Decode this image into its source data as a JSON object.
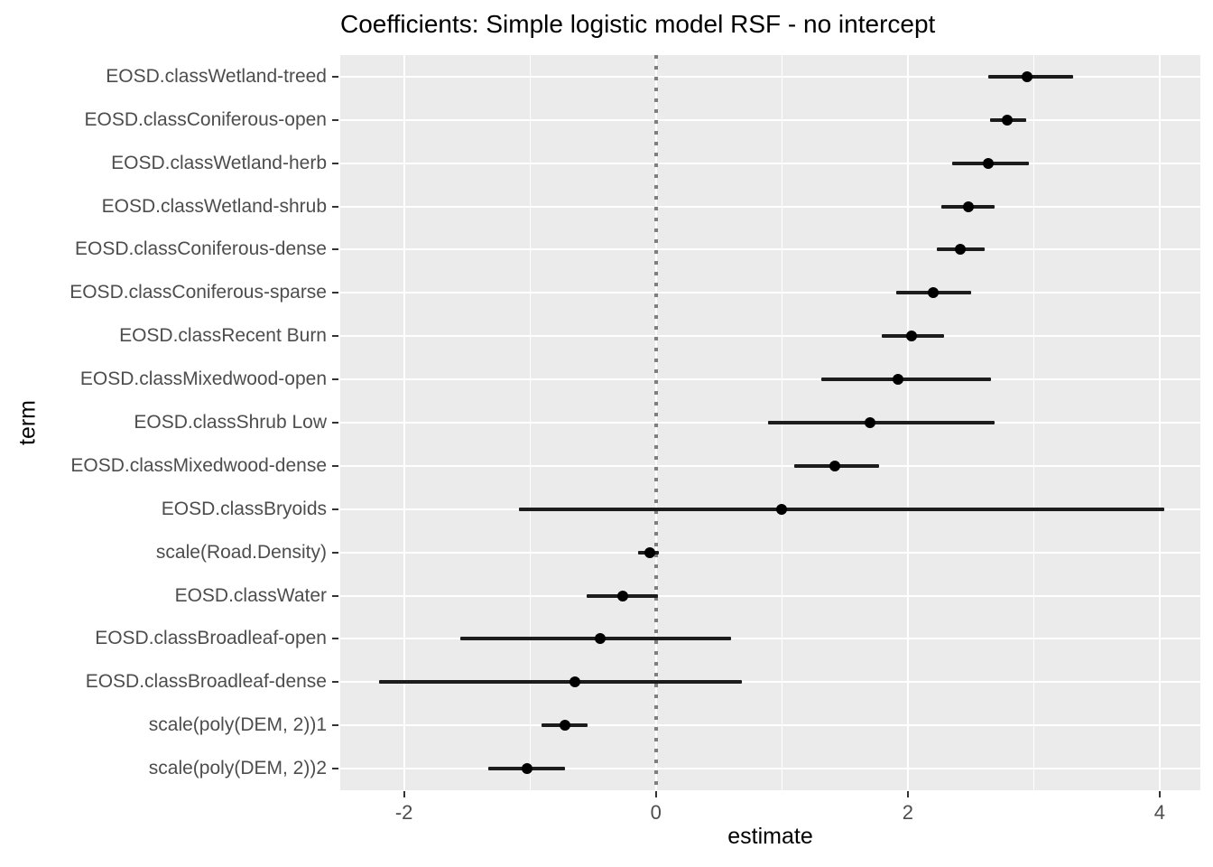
{
  "title": "Coefficients: Simple logistic model RSF - no intercept",
  "x_axis": {
    "title": "estimate",
    "tick_labels": [
      "-2",
      "0",
      "2",
      "4"
    ]
  },
  "y_axis": {
    "title": "term"
  },
  "colors": {
    "panel_background": "#EBEBEB",
    "gridline": "#FFFFFF",
    "axis_text": "#4D4D4D",
    "tick_mark": "#333333",
    "point": "#000000",
    "interval_bar": "#1C1C1C",
    "reference_line": "#7F7F7F",
    "title_text": "#000000"
  },
  "chart_data": {
    "type": "scatter",
    "subtype": "pointrange-forest-plot",
    "title": "Coefficients: Simple logistic model RSF - no intercept",
    "xlabel": "estimate",
    "ylabel": "term",
    "xlim": [
      -2.506,
      4.323
    ],
    "x_ticks": [
      -2,
      0,
      2,
      4
    ],
    "x_minor_ticks": [
      -1,
      1,
      3
    ],
    "grid": true,
    "legend": "none",
    "reference_line_x": 0,
    "reference_line_style": "dotted",
    "series": [
      {
        "term": "EOSD.classWetland-treed",
        "estimate": 2.95,
        "conf_low": 2.64,
        "conf_high": 3.31
      },
      {
        "term": "EOSD.classConiferous-open",
        "estimate": 2.79,
        "conf_low": 2.65,
        "conf_high": 2.94
      },
      {
        "term": "EOSD.classWetland-herb",
        "estimate": 2.64,
        "conf_low": 2.35,
        "conf_high": 2.96
      },
      {
        "term": "EOSD.classWetland-shrub",
        "estimate": 2.48,
        "conf_low": 2.27,
        "conf_high": 2.69
      },
      {
        "term": "EOSD.classConiferous-dense",
        "estimate": 2.42,
        "conf_low": 2.23,
        "conf_high": 2.61
      },
      {
        "term": "EOSD.classConiferous-sparse",
        "estimate": 2.2,
        "conf_low": 1.91,
        "conf_high": 2.5
      },
      {
        "term": "EOSD.classRecent Burn",
        "estimate": 2.03,
        "conf_low": 1.79,
        "conf_high": 2.29
      },
      {
        "term": "EOSD.classMixedwood-open",
        "estimate": 1.92,
        "conf_low": 1.31,
        "conf_high": 2.66
      },
      {
        "term": "EOSD.classShrub Low",
        "estimate": 1.7,
        "conf_low": 0.89,
        "conf_high": 2.69
      },
      {
        "term": "EOSD.classMixedwood-dense",
        "estimate": 1.42,
        "conf_low": 1.1,
        "conf_high": 1.77
      },
      {
        "term": "EOSD.classBryoids",
        "estimate": 1.0,
        "conf_low": -1.09,
        "conf_high": 4.04
      },
      {
        "term": "scale(Road.Density)",
        "estimate": -0.05,
        "conf_low": -0.14,
        "conf_high": 0.02
      },
      {
        "term": "EOSD.classWater",
        "estimate": -0.26,
        "conf_low": -0.55,
        "conf_high": 0.02
      },
      {
        "term": "EOSD.classBroadleaf-open",
        "estimate": -0.44,
        "conf_low": -1.55,
        "conf_high": 0.6
      },
      {
        "term": "EOSD.classBroadleaf-dense",
        "estimate": -0.64,
        "conf_low": -2.2,
        "conf_high": 0.68
      },
      {
        "term": "scale(poly(DEM, 2))1",
        "estimate": -0.72,
        "conf_low": -0.91,
        "conf_high": -0.54
      },
      {
        "term": "scale(poly(DEM, 2))2",
        "estimate": -1.02,
        "conf_low": -1.33,
        "conf_high": -0.72
      }
    ]
  }
}
